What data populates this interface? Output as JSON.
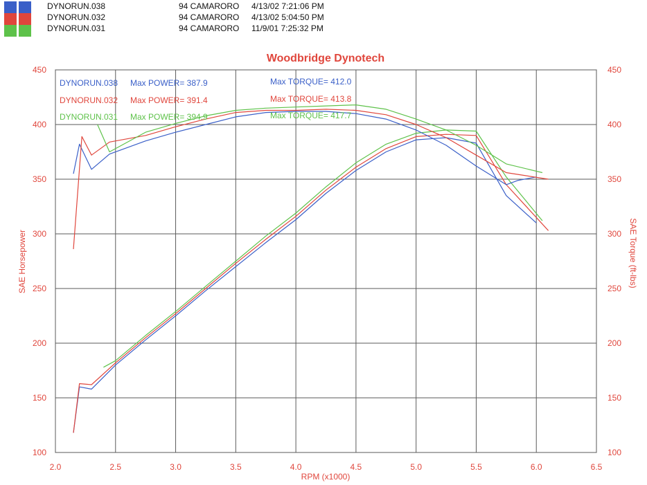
{
  "runs": [
    {
      "file": "DYNORUN.038",
      "vehicle": "94 CAMARORO",
      "timestamp": "4/13/02 7:21:06 PM",
      "color": "#3a5fc8"
    },
    {
      "file": "DYNORUN.032",
      "vehicle": "94 CAMARORO",
      "timestamp": "4/13/02 5:04:50 PM",
      "color": "#e0463c"
    },
    {
      "file": "DYNORUN.031",
      "vehicle": "94 CAMARORO",
      "timestamp": "11/9/01 7:25:32 PM",
      "color": "#5ec24a"
    }
  ],
  "chart_data": {
    "type": "line",
    "title": "Woodbridge Dynotech",
    "xlabel": "RPM (x1000)",
    "ylabel": "SAE Horsepower",
    "y2label": "SAE Torque (ft-lbs)",
    "xlim": [
      2.0,
      6.5
    ],
    "ylim": [
      100,
      450
    ],
    "y2lim": [
      100,
      450
    ],
    "xticks": [
      "2.0",
      "2.5",
      "3.0",
      "3.5",
      "4.0",
      "4.5",
      "5.0",
      "5.5",
      "6.0",
      "6.5"
    ],
    "yticks": [
      "100",
      "150",
      "200",
      "250",
      "300",
      "350",
      "400",
      "450"
    ],
    "y2ticks": [
      "100",
      "150",
      "200",
      "250",
      "300",
      "350",
      "400",
      "450"
    ],
    "grid": true,
    "legend": [
      {
        "name": "DYNORUN.038",
        "power_text": "Max POWER= 387.9",
        "torque_text": "Max TORQUE= 412.0",
        "color": "#3a5fc8"
      },
      {
        "name": "DYNORUN.032",
        "power_text": "Max POWER= 391.4",
        "torque_text": "Max TORQUE= 413.8",
        "color": "#e0463c"
      },
      {
        "name": "DYNORUN.031",
        "power_text": "Max POWER= 394.9",
        "torque_text": "Max TORQUE= 417.7",
        "color": "#5ec24a"
      }
    ],
    "series": [
      {
        "name": "DYNORUN.038",
        "measure": "power",
        "color": "#3a5fc8",
        "x": [
          2.15,
          2.2,
          2.3,
          2.5,
          2.75,
          3.0,
          3.25,
          3.5,
          3.75,
          4.0,
          4.25,
          4.5,
          4.75,
          5.0,
          5.25,
          5.5,
          5.75,
          6.0
        ],
        "y": [
          118,
          160,
          158,
          180,
          203,
          225,
          248,
          270,
          292,
          313,
          337,
          358,
          375,
          386,
          388,
          383,
          335,
          310
        ]
      },
      {
        "name": "DYNORUN.032",
        "measure": "power",
        "color": "#e0463c",
        "x": [
          2.15,
          2.2,
          2.3,
          2.5,
          2.75,
          3.0,
          3.25,
          3.5,
          3.75,
          4.0,
          4.25,
          4.5,
          4.75,
          5.0,
          5.25,
          5.5,
          5.75,
          6.1
        ],
        "y": [
          118,
          163,
          162,
          182,
          205,
          227,
          250,
          273,
          295,
          316,
          340,
          361,
          378,
          389,
          391,
          390,
          345,
          303
        ]
      },
      {
        "name": "DYNORUN.031",
        "measure": "power",
        "color": "#5ec24a",
        "x": [
          2.4,
          2.5,
          2.75,
          3.0,
          3.25,
          3.5,
          3.75,
          4.0,
          4.25,
          4.5,
          4.75,
          5.0,
          5.25,
          5.5,
          5.75,
          6.05
        ],
        "y": [
          178,
          184,
          207,
          229,
          252,
          275,
          298,
          319,
          343,
          365,
          382,
          392,
          395,
          394,
          352,
          312
        ]
      },
      {
        "name": "DYNORUN.038",
        "measure": "torque",
        "color": "#3a5fc8",
        "x": [
          2.15,
          2.2,
          2.3,
          2.45,
          2.75,
          3.0,
          3.25,
          3.5,
          3.75,
          4.0,
          4.25,
          4.5,
          4.75,
          5.0,
          5.25,
          5.5,
          5.75,
          5.85,
          6.0
        ],
        "y": [
          355,
          382,
          359,
          373,
          385,
          393,
          400,
          407,
          411,
          412,
          412,
          410,
          405,
          395,
          381,
          362,
          345,
          349,
          352
        ]
      },
      {
        "name": "DYNORUN.032",
        "measure": "torque",
        "color": "#e0463c",
        "x": [
          2.15,
          2.22,
          2.3,
          2.45,
          2.75,
          3.0,
          3.25,
          3.5,
          3.75,
          4.0,
          4.25,
          4.5,
          4.75,
          5.0,
          5.25,
          5.5,
          5.75,
          6.1
        ],
        "y": [
          286,
          389,
          372,
          384,
          390,
          398,
          405,
          411,
          413,
          413,
          414,
          413,
          409,
          400,
          388,
          372,
          356,
          350
        ]
      },
      {
        "name": "DYNORUN.031",
        "measure": "torque",
        "color": "#5ec24a",
        "x": [
          2.35,
          2.45,
          2.75,
          3.0,
          3.25,
          3.5,
          3.75,
          4.0,
          4.25,
          4.5,
          4.75,
          5.0,
          5.25,
          5.5,
          5.75,
          6.05
        ],
        "y": [
          400,
          375,
          393,
          401,
          408,
          413,
          415,
          416,
          417,
          418,
          414,
          405,
          395,
          381,
          364,
          356
        ]
      }
    ]
  }
}
